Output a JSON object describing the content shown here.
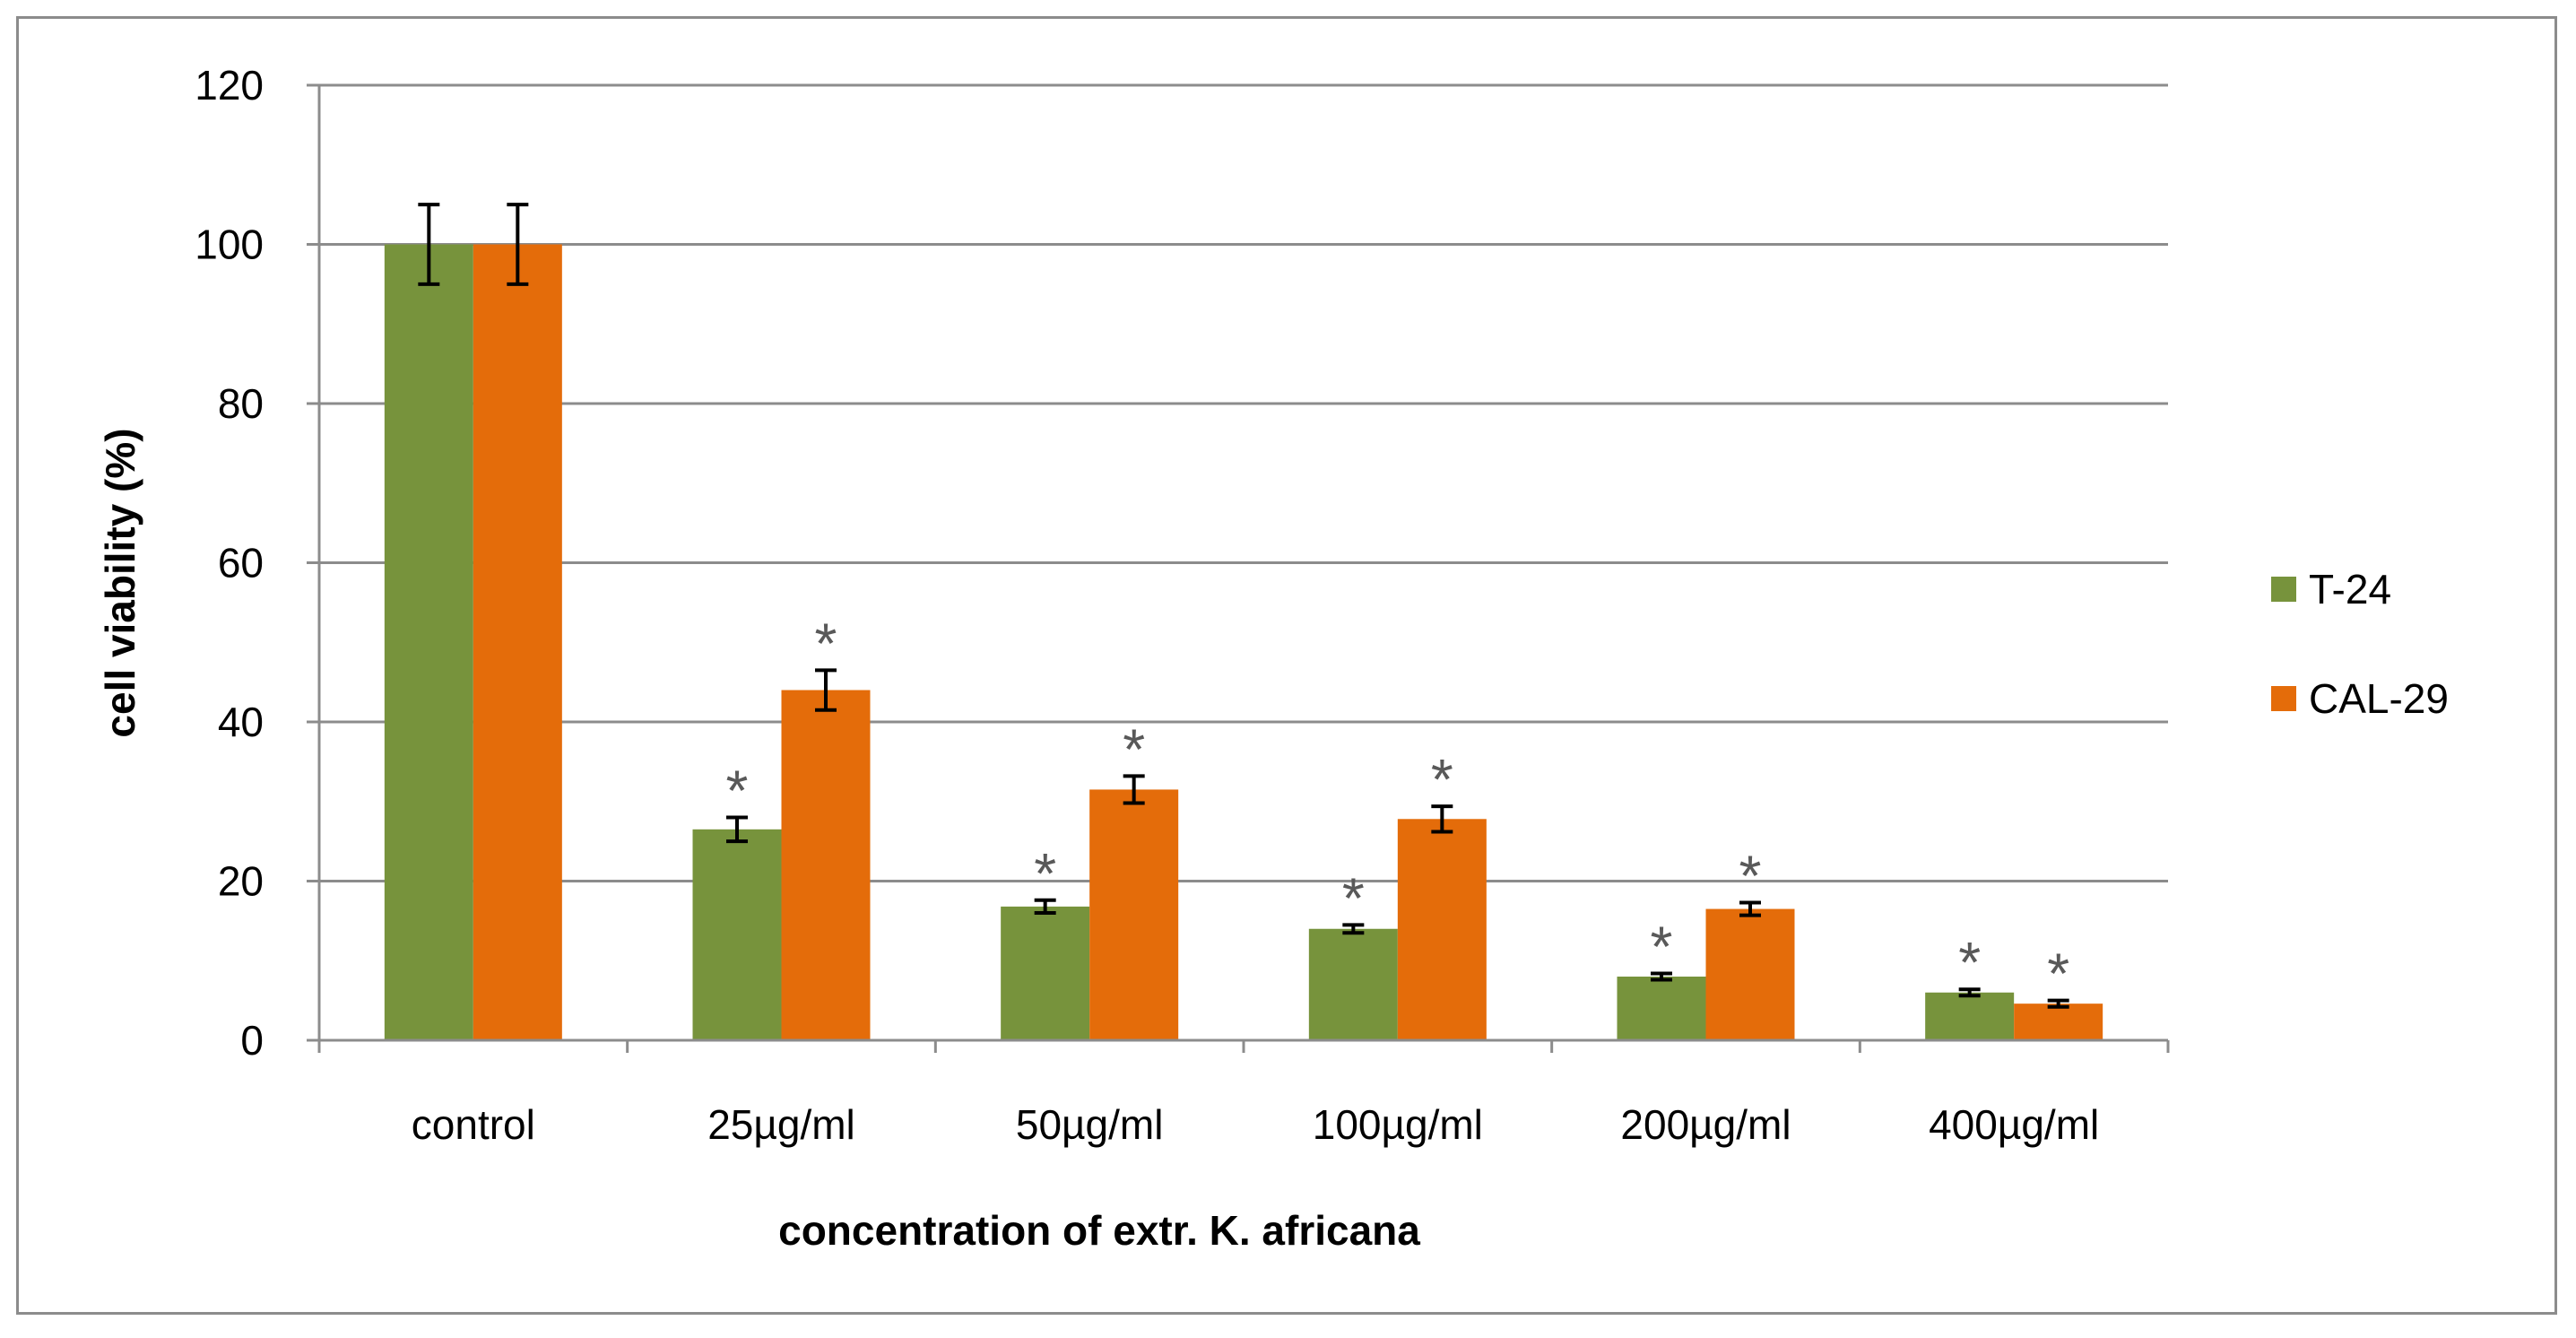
{
  "chart_data": {
    "type": "bar",
    "title": "",
    "xlabel": "concentration of extr. K. africana",
    "ylabel": "cell viability (%)",
    "ylim": [
      0,
      120
    ],
    "yticks": [
      0,
      20,
      40,
      60,
      80,
      100,
      120
    ],
    "ytick_labels": [
      "0",
      "20",
      "40",
      "60",
      "80",
      "100",
      "120"
    ],
    "grid": true,
    "legend_position": "right",
    "categories": [
      "control",
      "25µg/ml",
      "50µg/ml",
      "100µg/ml",
      "200µg/ml",
      "400µg/ml"
    ],
    "series": [
      {
        "name": "T-24",
        "color": "#77933c",
        "values": [
          100,
          26.5,
          16.8,
          14.0,
          8.0,
          6.0
        ],
        "errors": [
          5.0,
          1.5,
          0.8,
          0.5,
          0.4,
          0.4
        ],
        "significance": [
          "",
          "*",
          "*",
          "*",
          "*",
          "*"
        ]
      },
      {
        "name": "CAL-29",
        "color": "#e46c0a",
        "values": [
          100,
          44.0,
          31.5,
          27.8,
          16.5,
          4.6
        ],
        "errors": [
          5.0,
          2.5,
          1.7,
          1.6,
          0.8,
          0.4
        ],
        "significance": [
          "",
          "*",
          "*",
          "*",
          "*",
          "*"
        ]
      }
    ],
    "colors": {
      "gridline": "#8c8c8c",
      "axis": "#8c8c8c",
      "error_bar": "#000000",
      "significance": "#595959"
    }
  }
}
